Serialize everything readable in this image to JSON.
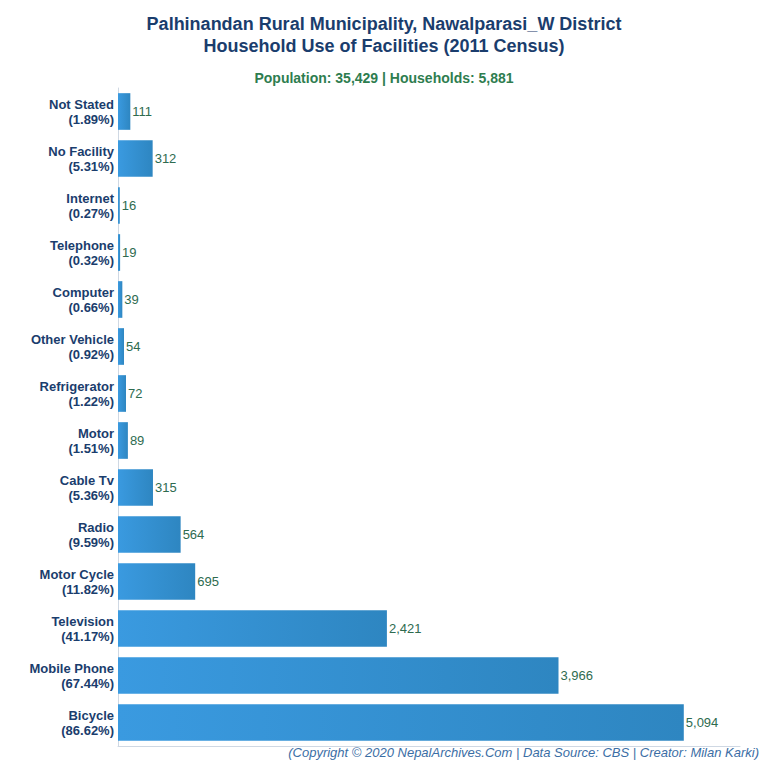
{
  "chart_data": {
    "type": "bar",
    "orientation": "horizontal",
    "title": "Palhinandan Rural Municipality, Nawalparasi_W District\nHousehold Use of Facilities (2011 Census)",
    "subtitle": "Population: 35,429 | Households: 5,881",
    "caption": "(Copyright © 2020 NepalArchives.Com | Data Source: CBS | Creator: Milan Karki)",
    "categories": [
      "Not Stated\n(1.89%)",
      "No Facility\n(5.31%)",
      "Internet\n(0.27%)",
      "Telephone\n(0.32%)",
      "Computer\n(0.66%)",
      "Other Vehicle\n(0.92%)",
      "Refrigerator\n(1.22%)",
      "Motor\n(1.51%)",
      "Cable Tv\n(5.36%)",
      "Radio\n(9.59%)",
      "Motor Cycle\n(11.82%)",
      "Television\n(41.17%)",
      "Mobile Phone\n(67.44%)",
      "Bicycle\n(86.62%)"
    ],
    "values": [
      111,
      312,
      16,
      19,
      39,
      54,
      72,
      89,
      315,
      564,
      695,
      2421,
      3966,
      5094
    ],
    "value_labels": [
      "111",
      "312",
      "16",
      "19",
      "39",
      "54",
      "72",
      "89",
      "315",
      "564",
      "695",
      "2,421",
      "3,966",
      "5,094"
    ],
    "color": "#2e86c1",
    "xlim": [
      0,
      5600
    ],
    "data_labels": true,
    "tick_labels": "y",
    "grid": false
  }
}
